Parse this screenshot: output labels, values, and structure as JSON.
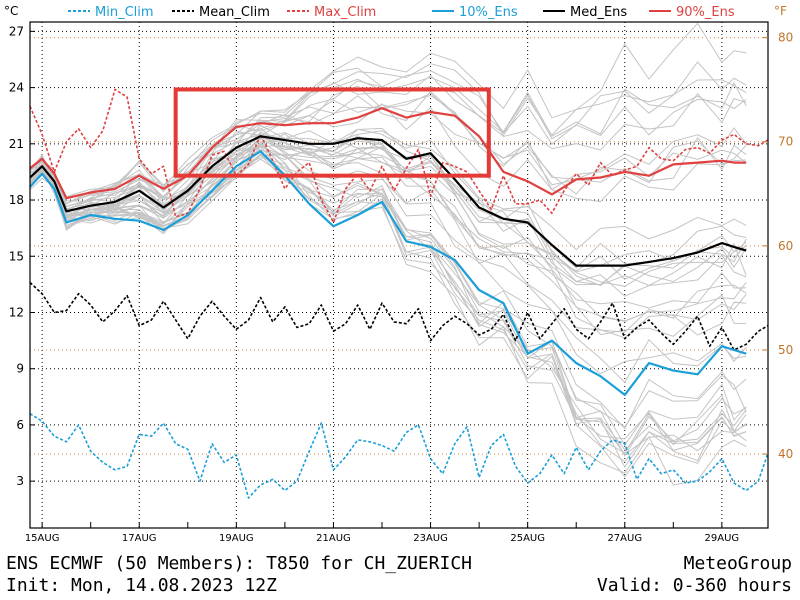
{
  "footer": {
    "line1_left": "ENS ECMWF (50 Members): T850 for CH_ZUERICH",
    "line2_left": "Init: Mon, 14.08.2023 12Z",
    "line1_right": "MeteoGroup",
    "line2_right": "Valid: 0-360 hours"
  },
  "chart_data": {
    "type": "line",
    "y_unit_left": "°C",
    "y_unit_right": "°F",
    "ylim": [
      0.5,
      27.5
    ],
    "xlim": [
      14.75,
      29.95
    ],
    "y_ticks": [
      3,
      6,
      9,
      12,
      15,
      18,
      21,
      24,
      27
    ],
    "y_ticks_f": [
      40,
      50,
      60,
      70,
      80
    ],
    "x_tick_values": [
      15,
      17,
      19,
      21,
      23,
      25,
      27,
      29
    ],
    "x_tick_labels": [
      "15AUG",
      "17AUG",
      "19AUG",
      "21AUG",
      "23AUG",
      "25AUG",
      "27AUG",
      "29AUG"
    ],
    "grid": true,
    "legend_position": "top",
    "series": [
      {
        "name": "Min_Clim",
        "color": "#1a9fd8",
        "dash": true,
        "x": [
          14.75,
          15.0,
          15.25,
          15.5,
          15.75,
          16.0,
          16.25,
          16.5,
          16.75,
          17.0,
          17.25,
          17.5,
          17.75,
          18.0,
          18.25,
          18.5,
          18.75,
          19.0,
          19.25,
          19.5,
          19.75,
          20.0,
          20.25,
          20.5,
          20.75,
          21.0,
          21.25,
          21.5,
          21.75,
          22.0,
          22.25,
          22.5,
          22.75,
          23.0,
          23.25,
          23.5,
          23.75,
          24.0,
          24.25,
          24.5,
          24.75,
          25.0,
          25.25,
          25.5,
          25.75,
          26.0,
          26.25,
          26.5,
          26.75,
          27.0,
          27.25,
          27.5,
          27.75,
          28.0,
          28.25,
          28.5,
          28.75,
          29.0,
          29.25,
          29.5,
          29.75,
          29.95
        ],
        "y": [
          6.6,
          6.2,
          5.4,
          5.1,
          6.0,
          4.6,
          4.0,
          3.6,
          3.8,
          5.5,
          5.4,
          6.1,
          5.0,
          4.7,
          3.0,
          5.0,
          4.0,
          4.4,
          2.1,
          2.8,
          3.1,
          2.5,
          3.0,
          4.6,
          6.1,
          3.6,
          4.3,
          5.2,
          5.1,
          4.9,
          4.6,
          5.6,
          6.0,
          4.2,
          3.4,
          5.0,
          5.9,
          3.2,
          4.9,
          5.5,
          3.8,
          2.9,
          3.4,
          4.4,
          3.4,
          4.8,
          3.6,
          4.6,
          5.2,
          5.0,
          3.1,
          4.2,
          3.4,
          3.6,
          2.9,
          3.0,
          3.5,
          4.2,
          2.9,
          2.5,
          3.0,
          4.5
        ]
      },
      {
        "name": "Mean_Clim",
        "color": "#000000",
        "dash": true,
        "x": [
          14.75,
          15.0,
          15.25,
          15.5,
          15.75,
          16.0,
          16.25,
          16.5,
          16.75,
          17.0,
          17.25,
          17.5,
          17.75,
          18.0,
          18.25,
          18.5,
          18.75,
          19.0,
          19.25,
          19.5,
          19.75,
          20.0,
          20.25,
          20.5,
          20.75,
          21.0,
          21.25,
          21.5,
          21.75,
          22.0,
          22.25,
          22.5,
          22.75,
          23.0,
          23.25,
          23.5,
          23.75,
          24.0,
          24.25,
          24.5,
          24.75,
          25.0,
          25.25,
          25.5,
          25.75,
          26.0,
          26.25,
          26.5,
          26.75,
          27.0,
          27.25,
          27.5,
          27.75,
          28.0,
          28.25,
          28.5,
          28.75,
          29.0,
          29.25,
          29.5,
          29.75,
          29.95
        ],
        "y": [
          13.6,
          13.0,
          12.0,
          12.1,
          13.0,
          12.4,
          11.5,
          12.1,
          12.9,
          11.3,
          11.6,
          12.6,
          11.6,
          10.6,
          11.8,
          12.6,
          11.8,
          11.1,
          11.6,
          12.8,
          11.5,
          12.3,
          11.2,
          11.4,
          12.4,
          11.0,
          11.4,
          12.4,
          11.1,
          12.5,
          11.5,
          11.4,
          12.2,
          10.5,
          11.3,
          11.8,
          11.4,
          10.8,
          11.1,
          11.9,
          10.5,
          12.0,
          10.6,
          11.4,
          12.2,
          11.1,
          10.6,
          11.5,
          12.5,
          10.6,
          11.2,
          11.6,
          10.9,
          10.3,
          11.0,
          11.8,
          10.2,
          11.2,
          10.0,
          10.3,
          11.0,
          11.3
        ]
      },
      {
        "name": "Max_Clim",
        "color": "#e04040",
        "dash": true,
        "x": [
          14.75,
          15.0,
          15.25,
          15.5,
          15.75,
          16.0,
          16.25,
          16.5,
          16.75,
          17.0,
          17.25,
          17.5,
          17.75,
          18.0,
          18.25,
          18.5,
          18.75,
          19.0,
          19.25,
          19.5,
          19.75,
          20.0,
          20.25,
          20.5,
          20.75,
          21.0,
          21.25,
          21.5,
          21.75,
          22.0,
          22.25,
          22.5,
          22.75,
          23.0,
          23.25,
          23.5,
          23.75,
          24.0,
          24.25,
          24.5,
          24.75,
          25.0,
          25.25,
          25.5,
          25.75,
          26.0,
          26.25,
          26.5,
          26.75,
          27.0,
          27.25,
          27.5,
          27.75,
          28.0,
          28.25,
          28.5,
          28.75,
          29.0,
          29.25,
          29.5,
          29.75,
          29.95
        ],
        "y": [
          23.0,
          21.5,
          19.5,
          21.1,
          21.8,
          20.8,
          21.7,
          23.9,
          23.5,
          20.2,
          19.4,
          19.8,
          17.1,
          17.3,
          18.6,
          20.4,
          20.6,
          19.3,
          19.9,
          21.5,
          20.1,
          18.6,
          19.5,
          20.0,
          18.0,
          16.8,
          18.6,
          19.4,
          18.5,
          19.8,
          18.5,
          19.7,
          20.7,
          18.2,
          20.0,
          19.8,
          19.5,
          18.5,
          17.5,
          19.3,
          17.8,
          17.8,
          18.0,
          17.3,
          18.5,
          19.4,
          18.8,
          20.0,
          19.3,
          19.6,
          19.8,
          20.8,
          20.2,
          20.1,
          20.7,
          20.8,
          20.5,
          21.2,
          21.5,
          21.0,
          20.9,
          21.2
        ]
      },
      {
        "name": "10%_Ens",
        "color": "#1a9fd8",
        "dash": false,
        "x": [
          14.75,
          15.0,
          15.25,
          15.5,
          16.0,
          16.5,
          17.0,
          17.5,
          18.0,
          18.5,
          19.0,
          19.5,
          20.0,
          20.5,
          21.0,
          21.5,
          22.0,
          22.5,
          23.0,
          23.5,
          24.0,
          24.5,
          25.0,
          25.5,
          26.0,
          26.5,
          27.0,
          27.5,
          28.0,
          28.5,
          29.0,
          29.25,
          29.5
        ],
        "y": [
          18.7,
          19.4,
          18.6,
          16.8,
          17.2,
          17.0,
          16.9,
          16.4,
          17.2,
          18.5,
          19.8,
          20.6,
          19.3,
          17.8,
          16.6,
          17.2,
          17.9,
          15.8,
          15.5,
          14.8,
          13.2,
          12.5,
          9.8,
          10.5,
          9.3,
          8.6,
          7.6,
          9.3,
          8.9,
          8.7,
          10.2,
          10.0,
          9.8
        ]
      },
      {
        "name": "Med_Ens",
        "color": "#000000",
        "dash": false,
        "x": [
          14.75,
          15.0,
          15.25,
          15.5,
          16.0,
          16.5,
          17.0,
          17.5,
          18.0,
          18.5,
          19.0,
          19.5,
          20.0,
          20.5,
          21.0,
          21.5,
          22.0,
          22.5,
          23.0,
          23.5,
          24.0,
          24.5,
          25.0,
          25.5,
          26.0,
          26.5,
          27.0,
          27.5,
          28.0,
          28.5,
          29.0,
          29.25,
          29.5
        ],
        "y": [
          19.2,
          19.8,
          19.0,
          17.4,
          17.7,
          17.9,
          18.5,
          17.6,
          18.5,
          19.8,
          20.8,
          21.4,
          21.2,
          21.0,
          21.0,
          21.3,
          21.2,
          20.2,
          20.5,
          19.1,
          17.6,
          17.0,
          16.8,
          15.6,
          14.5,
          14.5,
          14.5,
          14.7,
          14.9,
          15.2,
          15.7,
          15.5,
          15.3
        ]
      },
      {
        "name": "90%_Ens",
        "color": "#e04040",
        "dash": false,
        "x": [
          14.75,
          15.0,
          15.25,
          15.5,
          16.0,
          16.5,
          17.0,
          17.5,
          18.0,
          18.5,
          19.0,
          19.5,
          20.0,
          20.5,
          21.0,
          21.5,
          22.0,
          22.5,
          23.0,
          23.5,
          24.0,
          24.5,
          25.0,
          25.5,
          26.0,
          26.5,
          27.0,
          27.5,
          28.0,
          28.5,
          29.0,
          29.25,
          29.5
        ],
        "y": [
          19.7,
          20.2,
          19.4,
          18.1,
          18.4,
          18.6,
          19.3,
          18.6,
          19.3,
          20.8,
          21.9,
          22.1,
          22.0,
          22.1,
          22.1,
          22.4,
          22.9,
          22.4,
          22.7,
          22.5,
          21.4,
          19.5,
          19.0,
          18.3,
          19.1,
          19.2,
          19.5,
          19.3,
          19.9,
          20.0,
          20.1,
          20.0,
          20.0
        ]
      }
    ],
    "highlight_box": {
      "x_range": [
        17.75,
        24.2
      ],
      "y_range": [
        19.3,
        23.9
      ],
      "color": "#e53935"
    }
  }
}
